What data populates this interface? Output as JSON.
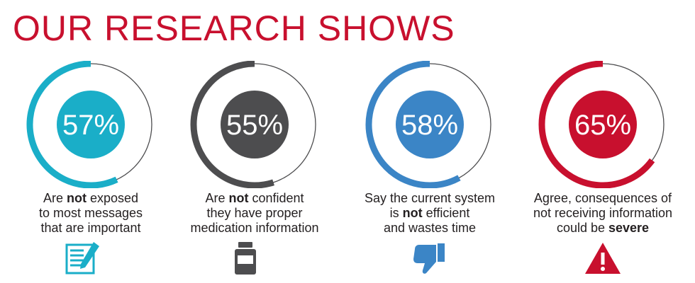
{
  "title": "OUR RESEARCH SHOWS",
  "stats": [
    {
      "percent": "57%",
      "fraction": 0.57,
      "color": "#1aaec8",
      "caption": [
        [
          {
            "t": "Are "
          },
          {
            "t": "not",
            "b": true
          },
          {
            "t": " exposed"
          }
        ],
        [
          {
            "t": "to most messages"
          }
        ],
        [
          {
            "t": "that are important"
          }
        ]
      ],
      "icon": "document-with-pen-icon"
    },
    {
      "percent": "55%",
      "fraction": 0.55,
      "color": "#4d4d4f",
      "caption": [
        [
          {
            "t": "Are "
          },
          {
            "t": "not",
            "b": true
          },
          {
            "t": " confident"
          }
        ],
        [
          {
            "t": "they have proper"
          }
        ],
        [
          {
            "t": "medication information"
          }
        ]
      ],
      "icon": "medicine-bottle-icon"
    },
    {
      "percent": "58%",
      "fraction": 0.58,
      "color": "#3b85c6",
      "caption": [
        [
          {
            "t": "Say the current system"
          }
        ],
        [
          {
            "t": "is "
          },
          {
            "t": "not",
            "b": true
          },
          {
            "t": " efficient"
          }
        ],
        [
          {
            "t": "and wastes time"
          }
        ]
      ],
      "icon": "thumbs-down-icon"
    },
    {
      "percent": "65%",
      "fraction": 0.65,
      "color": "#c8102e",
      "caption": [
        [
          {
            "t": "Agree, consequences of"
          }
        ],
        [
          {
            "t": "not receiving information"
          }
        ],
        [
          {
            "t": "could be "
          },
          {
            "t": "severe",
            "b": true
          }
        ]
      ],
      "icon": "warning-triangle-icon"
    }
  ]
}
